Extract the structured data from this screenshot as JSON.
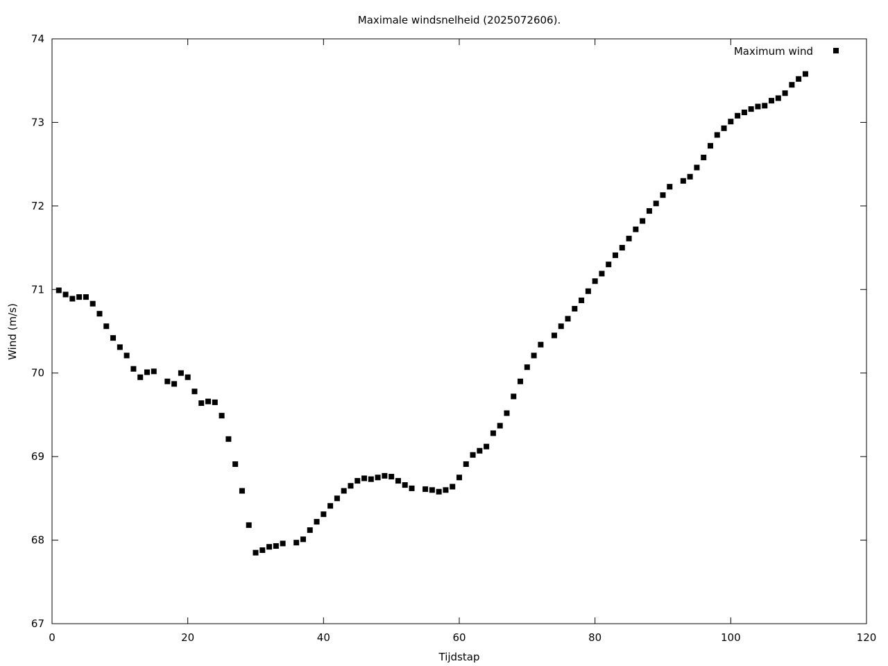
{
  "chart_data": {
    "type": "scatter",
    "title": "Maximale windsnelheid (2025072606).",
    "xlabel": "Tijdstap",
    "ylabel": "Wind (m/s)",
    "xlim": [
      0,
      120
    ],
    "ylim": [
      67,
      74
    ],
    "xticks": [
      0,
      20,
      40,
      60,
      80,
      100,
      120
    ],
    "yticks": [
      67,
      68,
      69,
      70,
      71,
      72,
      73,
      74
    ],
    "grid": false,
    "legend": "top-right",
    "marker_color": "#000000",
    "series": [
      {
        "name": "Maximum wind",
        "x": [
          1,
          2,
          3,
          4,
          5,
          6,
          7,
          8,
          9,
          10,
          11,
          12,
          13,
          14,
          15,
          17,
          18,
          19,
          20,
          21,
          22,
          23,
          24,
          25,
          26,
          27,
          28,
          29,
          30,
          31,
          32,
          33,
          34,
          36,
          37,
          38,
          39,
          40,
          41,
          42,
          43,
          44,
          45,
          46,
          47,
          48,
          49,
          50,
          51,
          52,
          53,
          55,
          56,
          57,
          58,
          59,
          60,
          61,
          62,
          63,
          64,
          65,
          66,
          67,
          68,
          69,
          70,
          71,
          72,
          74,
          75,
          76,
          77,
          78,
          79,
          80,
          81,
          82,
          83,
          84,
          85,
          86,
          87,
          88,
          89,
          90,
          91,
          93,
          94,
          95,
          96,
          97,
          98,
          99,
          100,
          101,
          102,
          103,
          104,
          105,
          106,
          107,
          108,
          109,
          110,
          111
        ],
        "y": [
          70.99,
          70.94,
          70.89,
          70.91,
          70.91,
          70.83,
          70.71,
          70.56,
          70.42,
          70.31,
          70.21,
          70.05,
          69.95,
          70.01,
          70.02,
          69.9,
          69.87,
          70.0,
          69.95,
          69.78,
          69.64,
          69.66,
          69.65,
          69.49,
          69.21,
          68.91,
          68.59,
          68.18,
          67.85,
          67.88,
          67.92,
          67.93,
          67.96,
          67.97,
          68.01,
          68.12,
          68.22,
          68.31,
          68.41,
          68.5,
          68.59,
          68.65,
          68.71,
          68.74,
          68.73,
          68.75,
          68.77,
          68.76,
          68.71,
          68.66,
          68.62,
          68.61,
          68.6,
          68.58,
          68.6,
          68.64,
          68.75,
          68.91,
          69.02,
          69.07,
          69.12,
          69.28,
          69.37,
          69.52,
          69.72,
          69.9,
          70.07,
          70.21,
          70.34,
          70.45,
          70.56,
          70.65,
          70.77,
          70.87,
          70.98,
          71.1,
          71.19,
          71.3,
          71.41,
          71.5,
          71.61,
          71.72,
          71.82,
          71.94,
          72.03,
          72.13,
          72.23,
          72.3,
          72.35,
          72.46,
          72.58,
          72.72,
          72.85,
          72.93,
          73.01,
          73.08,
          73.12,
          73.16,
          73.19,
          73.2,
          73.26,
          73.29,
          73.35,
          73.45,
          73.52,
          73.58
        ]
      }
    ]
  }
}
